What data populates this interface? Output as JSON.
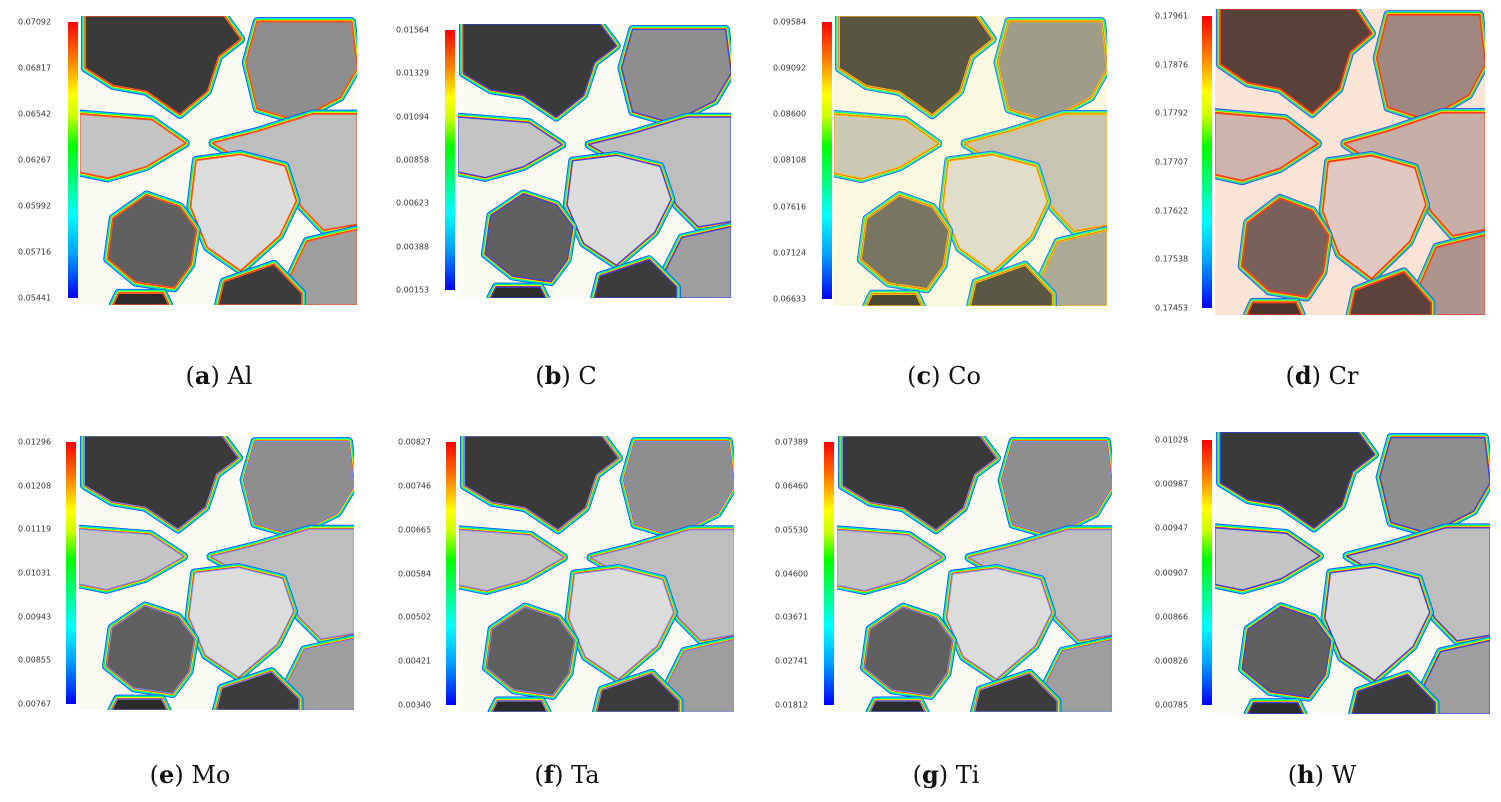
{
  "panels": [
    {
      "letter": "a",
      "element": "Al",
      "ticks": [
        "0.07092",
        "0.06817",
        "0.06542",
        "0.06267",
        "0.05992",
        "0.05716",
        "0.05441"
      ],
      "contour": "#ff5a2a",
      "tint": "none"
    },
    {
      "letter": "b",
      "element": "C",
      "ticks": [
        "0.01564",
        "0.01329",
        "0.01094",
        "0.00858",
        "0.00623",
        "0.00388",
        "0.00153"
      ],
      "contour": "#3344ff",
      "tint": "none"
    },
    {
      "letter": "c",
      "element": "Co",
      "ticks": [
        "0.09584",
        "0.09092",
        "0.08600",
        "0.08108",
        "0.07616",
        "0.07124",
        "0.06633"
      ],
      "contour": "#ffb000",
      "tint": "yellow"
    },
    {
      "letter": "d",
      "element": "Cr",
      "ticks": [
        "0.17961",
        "0.17876",
        "0.17792",
        "0.17707",
        "0.17622",
        "0.17538",
        "0.17453"
      ],
      "contour": "#ff3a1a",
      "tint": "red"
    },
    {
      "letter": "e",
      "element": "Mo",
      "ticks": [
        "0.01296",
        "0.01208",
        "0.01119",
        "0.01031",
        "0.00943",
        "0.00855",
        "0.00767"
      ],
      "contour": "#7a8cff",
      "tint": "none"
    },
    {
      "letter": "f",
      "element": "Ta",
      "ticks": [
        "0.00827",
        "0.00746",
        "0.00665",
        "0.00584",
        "0.00502",
        "0.00421",
        "0.00340"
      ],
      "contour": "#7a8cff",
      "tint": "none"
    },
    {
      "letter": "g",
      "element": "Ti",
      "ticks": [
        "0.07389",
        "0.06460",
        "0.05530",
        "0.04600",
        "0.03671",
        "0.02741",
        "0.01812"
      ],
      "contour": "#7a8cff",
      "tint": "none"
    },
    {
      "letter": "h",
      "element": "W",
      "ticks": [
        "0.01028",
        "0.00987",
        "0.00947",
        "0.00907",
        "0.00866",
        "0.00826",
        "0.00785"
      ],
      "contour": "#2a46ff",
      "tint": "none"
    }
  ]
}
